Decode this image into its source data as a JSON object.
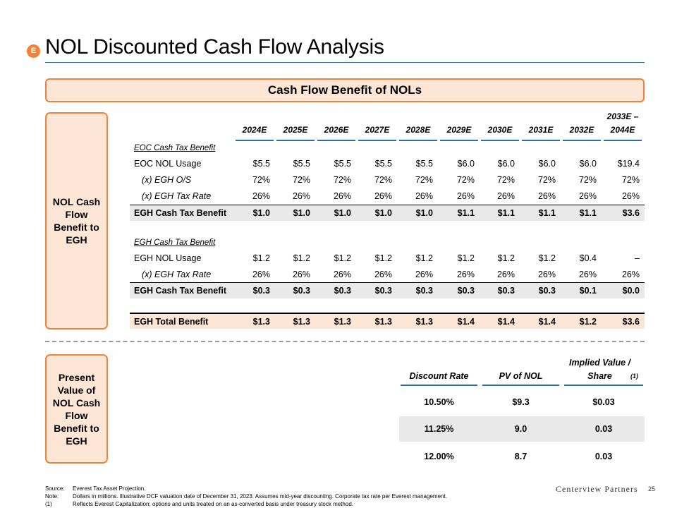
{
  "header": {
    "badge": "E",
    "title": "NOL Discounted Cash Flow Analysis"
  },
  "banner": "Cash Flow Benefit of NOLs",
  "side_labels": {
    "top": "NOL Cash Flow Benefit to EGH",
    "bottom": "Present Value of NOL Cash Flow Benefit to EGH"
  },
  "main_table": {
    "columns": [
      "2024E",
      "2025E",
      "2026E",
      "2027E",
      "2028E",
      "2029E",
      "2030E",
      "2031E",
      "2032E",
      "2033E –\n2044E"
    ],
    "eoc_section": "EOC Cash Tax Benefit",
    "eoc_nol_usage": {
      "label": "EOC NOL Usage",
      "values": [
        "$5.5",
        "$5.5",
        "$5.5",
        "$5.5",
        "$5.5",
        "$6.0",
        "$6.0",
        "$6.0",
        "$6.0",
        "$19.4"
      ]
    },
    "egh_os": {
      "label": "(x) EGH O/S",
      "values": [
        "72%",
        "72%",
        "72%",
        "72%",
        "72%",
        "72%",
        "72%",
        "72%",
        "72%",
        "72%"
      ]
    },
    "egh_tax_rate_1": {
      "label": "(x) EGH Tax Rate",
      "values": [
        "26%",
        "26%",
        "26%",
        "26%",
        "26%",
        "26%",
        "26%",
        "26%",
        "26%",
        "26%"
      ]
    },
    "egh_cash_tax_benefit_1": {
      "label": "EGH Cash Tax Benefit",
      "values": [
        "$1.0",
        "$1.0",
        "$1.0",
        "$1.0",
        "$1.0",
        "$1.1",
        "$1.1",
        "$1.1",
        "$1.1",
        "$3.6"
      ]
    },
    "egh_section": "EGH Cash Tax Benefit",
    "egh_nol_usage": {
      "label": "EGH NOL Usage",
      "values": [
        "$1.2",
        "$1.2",
        "$1.2",
        "$1.2",
        "$1.2",
        "$1.2",
        "$1.2",
        "$1.2",
        "$0.4",
        "–"
      ]
    },
    "egh_tax_rate_2": {
      "label": "(x) EGH Tax Rate",
      "values": [
        "26%",
        "26%",
        "26%",
        "26%",
        "26%",
        "26%",
        "26%",
        "26%",
        "26%",
        "26%"
      ]
    },
    "egh_cash_tax_benefit_2": {
      "label": "EGH Cash Tax Benefit",
      "values": [
        "$0.3",
        "$0.3",
        "$0.3",
        "$0.3",
        "$0.3",
        "$0.3",
        "$0.3",
        "$0.3",
        "$0.1",
        "$0.0"
      ]
    },
    "egh_total_benefit": {
      "label": "EGH Total Benefit",
      "values": [
        "$1.3",
        "$1.3",
        "$1.3",
        "$1.3",
        "$1.3",
        "$1.4",
        "$1.4",
        "$1.4",
        "$1.2",
        "$3.6"
      ]
    }
  },
  "pv_table": {
    "headers": [
      "Discount Rate",
      "PV of NOL",
      "Implied Value /\nShare"
    ],
    "header_footnote": "(1)",
    "rows": [
      [
        "10.50%",
        "$9.3",
        "$0.03"
      ],
      [
        "11.25%",
        "9.0",
        "0.03"
      ],
      [
        "12.00%",
        "8.7",
        "0.03"
      ]
    ]
  },
  "footnotes": [
    {
      "key": "Source:",
      "text": "Everest Tax Asset Projection."
    },
    {
      "key": "Note:",
      "text": "Dollars in millions. Illustrative DCF valuation date of December 31, 2023. Assumes mid-year discounting. Corporate tax rate per Everest management."
    },
    {
      "key": "(1)",
      "text": "Reflects Everest Capitalization; options and units treated on an as-converted basis under treasury stock method."
    }
  ],
  "logo": "Centerview Partners",
  "page_number": "25"
}
